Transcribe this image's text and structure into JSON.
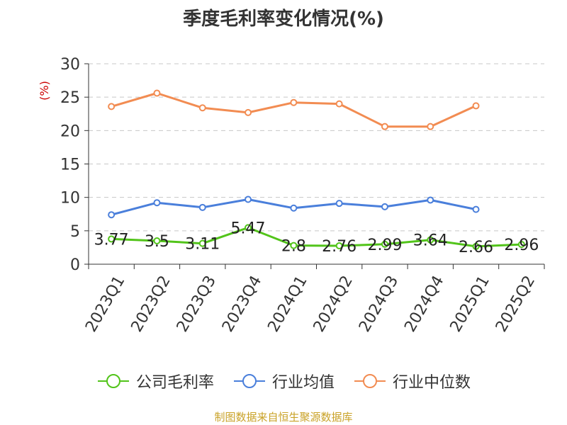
{
  "chart_data": {
    "type": "line",
    "title": "季度毛利率变化情况(%)",
    "ylabel": "(%)",
    "xlabel": "",
    "categories": [
      "2023Q1",
      "2023Q2",
      "2023Q3",
      "2023Q4",
      "2024Q1",
      "2024Q2",
      "2024Q3",
      "2024Q4",
      "2025Q1",
      "2025Q2"
    ],
    "ylim": [
      0,
      30
    ],
    "yticks": [
      0,
      5,
      10,
      15,
      20,
      25,
      30
    ],
    "grid": true,
    "legend_position": "bottom",
    "series": [
      {
        "name": "公司毛利率",
        "color": "#52c41a",
        "values": [
          3.77,
          3.5,
          3.11,
          5.47,
          2.8,
          2.76,
          2.99,
          3.64,
          2.66,
          2.96
        ],
        "labels": [
          "3.77",
          "3.5",
          "3.11",
          "5.47",
          "2.8",
          "2.76",
          "2.99",
          "3.64",
          "2.66",
          "2.96"
        ],
        "show_labels": true
      },
      {
        "name": "行业均值",
        "color": "#4a7fdb",
        "values": [
          7.4,
          9.2,
          8.5,
          9.7,
          8.4,
          9.1,
          8.6,
          9.6,
          8.2,
          null
        ],
        "show_labels": false
      },
      {
        "name": "行业中位数",
        "color": "#f28c52",
        "values": [
          23.6,
          25.6,
          23.4,
          22.7,
          24.2,
          24.0,
          20.6,
          20.6,
          23.7,
          null
        ],
        "show_labels": false
      }
    ]
  },
  "footer": {
    "source": "制图数据来自恒生聚源数据库"
  }
}
